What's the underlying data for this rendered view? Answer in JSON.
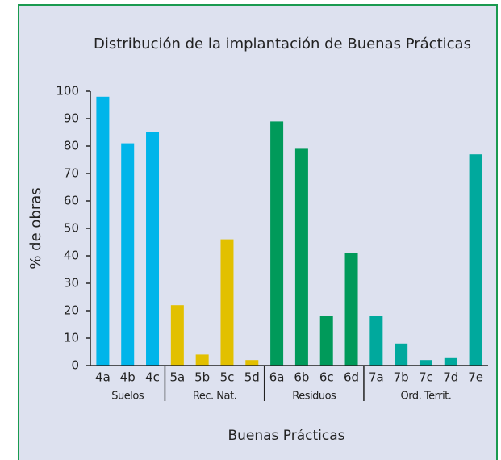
{
  "chart_data": {
    "type": "bar",
    "title": "Distribución de la implantación de Buenas Prácticas",
    "x_label": "Buenas Prácticas",
    "y_label": "% de obras",
    "groups": [
      {
        "name": "Suelos",
        "color": "#00b5ea",
        "categories": [
          "4a",
          "4b",
          "4c"
        ],
        "values": [
          98,
          81,
          85
        ]
      },
      {
        "name": "Rec. Nat.",
        "color": "#e2c000",
        "categories": [
          "5a",
          "5b",
          "5c",
          "5d"
        ],
        "values": [
          22,
          4,
          46,
          2
        ]
      },
      {
        "name": "Residuos",
        "color": "#009a5a",
        "categories": [
          "6a",
          "6b",
          "6c",
          "6d"
        ],
        "values": [
          89,
          79,
          18,
          41
        ]
      },
      {
        "name": "Ord. Territ.",
        "color": "#00a99d",
        "categories": [
          "7a",
          "7b",
          "7c",
          "7d",
          "7e"
        ],
        "values": [
          18,
          8,
          2,
          3,
          77
        ]
      }
    ],
    "ylim": [
      0,
      100
    ],
    "yticks": [
      0,
      10,
      20,
      30,
      40,
      50,
      60,
      70,
      80,
      90,
      100
    ]
  }
}
